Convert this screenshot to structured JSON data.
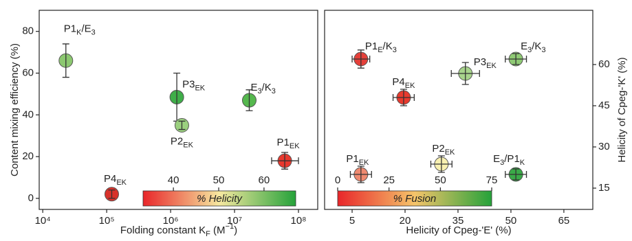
{
  "chart_data": [
    {
      "type": "scatter",
      "ylabel": "Content mixing efficiency (%)",
      "xlabel": [
        "Folding constant K",
        "F",
        " (M",
        "−1",
        ")"
      ],
      "xscale": "log",
      "xlim": [
        8800,
        200000000
      ],
      "xticks": [
        {
          "value": 10000,
          "label": "10⁴"
        },
        {
          "value": 100000,
          "label": "10⁵"
        },
        {
          "value": 1000000,
          "label": "10⁶"
        },
        {
          "value": 10000000,
          "label": "10⁷"
        },
        {
          "value": 100000000,
          "label": "10⁸"
        }
      ],
      "ylim": [
        -5.3,
        90.1
      ],
      "yticks": [
        0,
        20,
        40,
        60,
        80
      ],
      "yaxis_side": "left",
      "points": [
        {
          "label": [
            "P1",
            "K",
            "/E",
            "3"
          ],
          "x": 23000,
          "y": 66,
          "yerr": 8,
          "color": "#8cc870"
        },
        {
          "label": [
            "P3",
            "EK"
          ],
          "x": 1250000,
          "y": 48.5,
          "yerr": 11.5,
          "color": "#3fae49"
        },
        {
          "label": [
            "P2",
            "EK"
          ],
          "x": 1500000,
          "y": 35,
          "yerr": 2,
          "color": "#9bd07f"
        },
        {
          "label": [
            "E",
            "3",
            "/K",
            "3"
          ],
          "x": 17000000,
          "y": 47,
          "yerr": 5,
          "color": "#55b84e"
        },
        {
          "label": [
            "P1",
            "EK"
          ],
          "x": 61000000,
          "y": 18,
          "yerr": 4,
          "xerr": [
            23000000,
            39000000
          ],
          "color": "#e8392f"
        },
        {
          "label": [
            "P4",
            "EK"
          ],
          "x": 120000,
          "y": 2,
          "yerr": 2,
          "color": "#d8322b"
        }
      ],
      "colorbar": {
        "label": "% Helicity",
        "lim": [
          33.3,
          67
        ],
        "ticks": [
          40,
          50,
          60
        ],
        "colors": [
          "#e8262a",
          "#f6e8a0",
          "#25a23a"
        ]
      }
    },
    {
      "type": "scatter",
      "ylabel": "Helicity of Cpeg-'K' (%)",
      "xlabel": [
        "Helicity of Cpeg-'E' (%)"
      ],
      "xlim": [
        -2.8,
        73.2
      ],
      "xticks": [
        5,
        20,
        35,
        50,
        65
      ],
      "ylim": [
        7.25,
        79.75
      ],
      "yticks": [
        15,
        30,
        45,
        60
      ],
      "yaxis_side": "right",
      "points": [
        {
          "label": [
            "P1",
            "E",
            "/K",
            "3"
          ],
          "x": 7.5,
          "y": 62,
          "xerr": 2.5,
          "yerr": 3.3,
          "color": "#e5403a"
        },
        {
          "label": [
            "P3",
            "EK"
          ],
          "x": 37.1,
          "y": 56.75,
          "xerr": 4,
          "yerr": 4,
          "color": "#a8d48c"
        },
        {
          "label": [
            "E",
            "3",
            "/K",
            "3"
          ],
          "x": 51.4,
          "y": 62,
          "xerr": 3,
          "yerr": 2,
          "color": "#8fca74"
        },
        {
          "label": [
            "P4",
            "EK"
          ],
          "x": 19.6,
          "y": 48,
          "xerr": 3,
          "yerr": 3,
          "color": "#e83a2e"
        },
        {
          "label": [
            "P2",
            "EK"
          ],
          "x": 30.3,
          "y": 23.75,
          "xerr": 3,
          "yerr": 3,
          "color": "#f8f0b0"
        },
        {
          "label": [
            "P1",
            "EK"
          ],
          "x": 7.5,
          "y": 20,
          "xerr": 3,
          "yerr": 3,
          "color": "#ef8a70"
        },
        {
          "label": [
            "E",
            "3",
            "/P1",
            "K"
          ],
          "x": 51.4,
          "y": 20,
          "xerr": 3,
          "yerr": 2,
          "color": "#3aaa48"
        }
      ],
      "colorbar": {
        "label": "% Fusion",
        "lim": [
          0,
          75
        ],
        "ticks": [
          0,
          25,
          50,
          75
        ],
        "colors": [
          "#e8262a",
          "#f5c46a",
          "#25a23a"
        ]
      }
    }
  ]
}
